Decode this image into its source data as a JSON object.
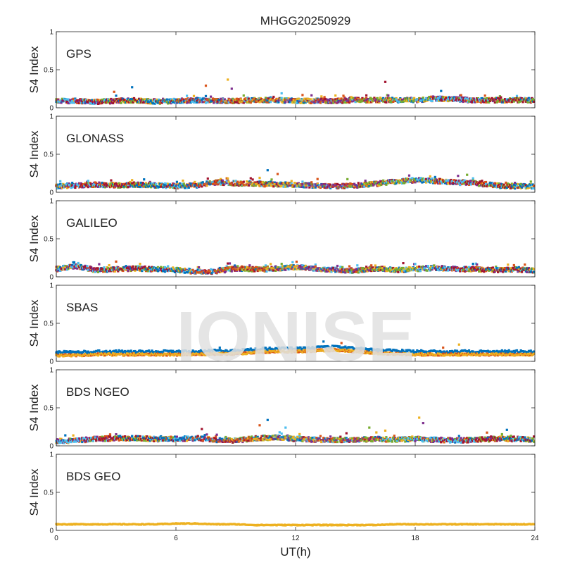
{
  "title": "MHGG20250929",
  "watermark": "IONISE",
  "xlabel": "UT(h)",
  "ylabel": "S4 Index",
  "colors": [
    "#0072BD",
    "#D95319",
    "#EDB120",
    "#7E2F8E",
    "#77AC30",
    "#4DBEEE",
    "#A2142F"
  ],
  "chart_data": [
    {
      "type": "scatter",
      "panel": "GPS",
      "xlim": [
        0,
        24
      ],
      "ylim": [
        0,
        1
      ],
      "yticks": [
        "0",
        "0.5",
        "1"
      ],
      "xticks": [],
      "baseline": [
        0.09,
        0.09,
        0.08,
        0.09,
        0.1,
        0.08,
        0.09,
        0.1,
        0.09,
        0.09,
        0.1,
        0.1,
        0.09,
        0.09,
        0.09,
        0.1,
        0.1,
        0.1,
        0.1,
        0.12,
        0.11,
        0.1,
        0.1,
        0.1,
        0.1
      ],
      "spikes": [
        [
          3.8,
          0.27
        ],
        [
          7.5,
          0.29
        ],
        [
          8.6,
          0.37
        ],
        [
          8.8,
          0.25
        ],
        [
          9.4,
          0.16
        ],
        [
          11.3,
          0.19
        ],
        [
          16.5,
          0.34
        ],
        [
          19.3,
          0.22
        ],
        [
          2.9,
          0.21
        ],
        [
          14.0,
          0.16
        ]
      ]
    },
    {
      "type": "scatter",
      "panel": "GLONASS",
      "xlim": [
        0,
        24
      ],
      "ylim": [
        0,
        1
      ],
      "yticks": [
        "0",
        "0.5",
        "1"
      ],
      "xticks": [],
      "baseline": [
        0.08,
        0.09,
        0.1,
        0.09,
        0.1,
        0.09,
        0.08,
        0.09,
        0.13,
        0.12,
        0.11,
        0.1,
        0.1,
        0.09,
        0.08,
        0.09,
        0.11,
        0.14,
        0.16,
        0.15,
        0.13,
        0.12,
        0.09,
        0.08,
        0.08
      ],
      "spikes": [
        [
          10.6,
          0.29
        ],
        [
          11.1,
          0.24
        ],
        [
          10.2,
          0.19
        ],
        [
          17.7,
          0.22
        ],
        [
          20.6,
          0.23
        ],
        [
          1.6,
          0.15
        ],
        [
          7.6,
          0.18
        ],
        [
          19.0,
          0.2
        ]
      ]
    },
    {
      "type": "scatter",
      "panel": "GALILEO",
      "xlim": [
        0,
        24
      ],
      "ylim": [
        0,
        1
      ],
      "yticks": [
        "0",
        "0.5",
        "1"
      ],
      "xticks": [],
      "baseline": [
        0.1,
        0.14,
        0.09,
        0.1,
        0.11,
        0.1,
        0.09,
        0.07,
        0.07,
        0.11,
        0.1,
        0.1,
        0.13,
        0.11,
        0.09,
        0.08,
        0.11,
        0.09,
        0.1,
        0.12,
        0.1,
        0.1,
        0.09,
        0.1,
        0.08
      ],
      "spikes": [
        [
          0.9,
          0.19
        ],
        [
          3.0,
          0.2
        ],
        [
          4.2,
          0.17
        ],
        [
          9.7,
          0.15
        ],
        [
          11.3,
          0.17
        ],
        [
          15.1,
          0.15
        ],
        [
          17.4,
          0.18
        ],
        [
          20.9,
          0.17
        ],
        [
          23.5,
          0.16
        ]
      ]
    },
    {
      "type": "scatter",
      "panel": "SBAS",
      "xlim": [
        0,
        24
      ],
      "ylim": [
        0,
        1
      ],
      "yticks": [
        "0",
        "0.5",
        "1"
      ],
      "xticks": [],
      "baseline": [
        0.12,
        0.12,
        0.13,
        0.13,
        0.13,
        0.13,
        0.13,
        0.13,
        0.14,
        0.14,
        0.16,
        0.17,
        0.17,
        0.18,
        0.19,
        0.17,
        0.15,
        0.14,
        0.13,
        0.13,
        0.13,
        0.13,
        0.13,
        0.13,
        0.13
      ],
      "spikes": [
        [
          13.4,
          0.26
        ],
        [
          14.3,
          0.24
        ],
        [
          20.2,
          0.22
        ],
        [
          8.2,
          0.18
        ],
        [
          19.4,
          0.18
        ]
      ]
    },
    {
      "type": "scatter",
      "panel": "BDS NGEO",
      "xlim": [
        0,
        24
      ],
      "ylim": [
        0,
        1
      ],
      "yticks": [
        "0",
        "0.5",
        "1"
      ],
      "xticks": [],
      "baseline": [
        0.06,
        0.07,
        0.09,
        0.1,
        0.1,
        0.09,
        0.09,
        0.1,
        0.08,
        0.07,
        0.1,
        0.11,
        0.09,
        0.08,
        0.08,
        0.08,
        0.09,
        0.08,
        0.09,
        0.08,
        0.07,
        0.08,
        0.09,
        0.09,
        0.08
      ],
      "spikes": [
        [
          10.6,
          0.34
        ],
        [
          10.2,
          0.27
        ],
        [
          18.2,
          0.37
        ],
        [
          18.4,
          0.3
        ],
        [
          15.7,
          0.24
        ],
        [
          11.5,
          0.24
        ],
        [
          7.3,
          0.22
        ],
        [
          22.6,
          0.21
        ],
        [
          2.7,
          0.15
        ],
        [
          16.5,
          0.2
        ]
      ]
    },
    {
      "type": "scatter",
      "panel": "BDS GEO",
      "xlim": [
        0,
        24
      ],
      "ylim": [
        0,
        1
      ],
      "yticks": [
        "0",
        "0.5",
        "1"
      ],
      "xticks": [
        "0",
        "6",
        "12",
        "18",
        "24"
      ],
      "baseline": [
        0.08,
        0.08,
        0.08,
        0.08,
        0.08,
        0.08,
        0.09,
        0.09,
        0.08,
        0.08,
        0.07,
        0.07,
        0.07,
        0.07,
        0.07,
        0.07,
        0.07,
        0.08,
        0.08,
        0.08,
        0.08,
        0.08,
        0.08,
        0.08,
        0.08
      ],
      "spikes": []
    }
  ]
}
